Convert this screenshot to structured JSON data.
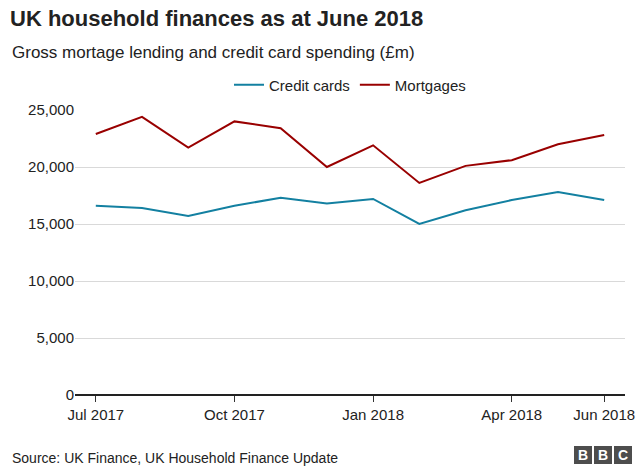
{
  "chart_data": {
    "type": "line",
    "title": "UK household finances as at June 2018",
    "subtitle": "Gross mortage lending and credit card spending (£m)",
    "source": "Source: UK Finance, UK Household Finance Update",
    "logo": "BBC",
    "categories": [
      "Jul 2017",
      null,
      null,
      "Oct 2017",
      null,
      null,
      "Jan 2018",
      null,
      null,
      "Apr 2018",
      null,
      "Jun 2018"
    ],
    "series": [
      {
        "name": "Credit cards",
        "color": "#1380a1",
        "values": [
          16600,
          16400,
          15700,
          16600,
          17300,
          16800,
          17200,
          15000,
          16200,
          17100,
          17800,
          17100
        ]
      },
      {
        "name": "Mortgages",
        "color": "#990000",
        "values": [
          22900,
          24400,
          21700,
          24000,
          23400,
          20000,
          21900,
          18600,
          20100,
          20600,
          22000,
          22800
        ]
      }
    ],
    "ylim": [
      0,
      25000
    ],
    "yticks": [
      0,
      {
        "value": 5000,
        "label": "5,000"
      },
      {
        "value": 10000,
        "label": "10,000"
      },
      {
        "value": 15000,
        "label": "15,000"
      },
      {
        "value": 20000,
        "label": "20,000"
      },
      {
        "value": 25000,
        "label": "25,000"
      }
    ],
    "grid": true,
    "legend": "top"
  }
}
